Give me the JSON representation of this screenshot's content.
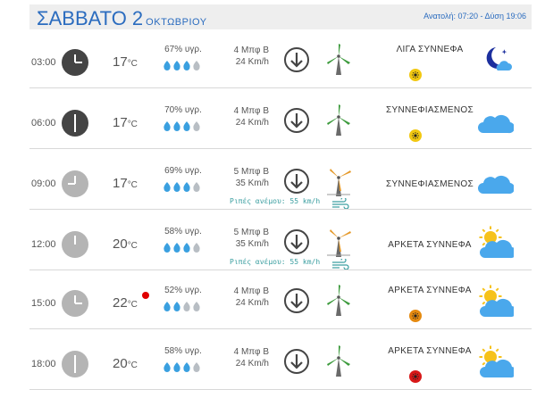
{
  "header": {
    "day": "ΣΑΒΒΑΤΟ 2",
    "month": "ΟΚΤΩΒΡΙΟΥ",
    "sun": "Ανατολή: 07:20 - Δύση 19:06"
  },
  "rows": [
    {
      "time": "03:00",
      "temp": "17",
      "unit": "°C",
      "humidity": "67% υγρ.",
      "drops_filled": 3,
      "wind_bf": "4 Μπφ Β",
      "wind_kmh": "24 Km/h",
      "gust": "",
      "mill": "green",
      "description": "ΛΙΓΑ ΣΥΝΝΕΦΑ",
      "uv_color": "#f2c811",
      "weather_icon": "moon-cloud-icon",
      "clock": "dark"
    },
    {
      "time": "06:00",
      "temp": "17",
      "unit": "°C",
      "humidity": "70% υγρ.",
      "drops_filled": 3,
      "wind_bf": "4 Μπφ Β",
      "wind_kmh": "24 Km/h",
      "gust": "",
      "mill": "green",
      "description": "ΣΥΝΝΕΦΙΑΣΜΕΝΟΣ",
      "uv_color": "#f2c811",
      "weather_icon": "cloud-icon",
      "clock": "dark"
    },
    {
      "time": "09:00",
      "temp": "17",
      "unit": "°C",
      "humidity": "69% υγρ.",
      "drops_filled": 3,
      "wind_bf": "5 Μπφ Β",
      "wind_kmh": "35 Km/h",
      "gust": "Ριπές ανέμου: 55 km/h",
      "mill": "orange",
      "description": "ΣΥΝΝΕΦΙΑΣΜΕΝΟΣ",
      "uv_color": "",
      "weather_icon": "cloud-icon",
      "clock": "light"
    },
    {
      "time": "12:00",
      "temp": "20",
      "unit": "°C",
      "humidity": "58% υγρ.",
      "drops_filled": 3,
      "wind_bf": "5 Μπφ Β",
      "wind_kmh": "35 Km/h",
      "gust": "Ριπές ανέμου: 55 km/h",
      "mill": "orange",
      "description": "ΑΡΚΕΤΑ ΣΥΝΝΕΦΑ",
      "uv_color": "",
      "weather_icon": "sun-cloud-icon",
      "clock": "light"
    },
    {
      "time": "15:00",
      "temp": "22",
      "unit": "°C",
      "humidity": "52% υγρ.",
      "drops_filled": 2,
      "wind_bf": "4 Μπφ Β",
      "wind_kmh": "24 Km/h",
      "gust": "",
      "mill": "green",
      "description": "ΑΡΚΕΤΑ ΣΥΝΝΕΦΑ",
      "uv_color": "#e58a10",
      "weather_icon": "sun-cloud-icon",
      "clock": "light",
      "alert": true
    },
    {
      "time": "18:00",
      "temp": "20",
      "unit": "°C",
      "humidity": "58% υγρ.",
      "drops_filled": 3,
      "wind_bf": "4 Μπφ Β",
      "wind_kmh": "24 Km/h",
      "gust": "",
      "mill": "green",
      "description": "ΑΡΚΕΤΑ ΣΥΝΝΕΦΑ",
      "uv_color": "#d81818",
      "weather_icon": "sun-cloud-icon",
      "clock": "light"
    }
  ],
  "colors": {
    "accent": "#2b6cbf",
    "cloud": "#4aa8ec",
    "moon": "#1c2f9e",
    "sun": "#f6c21a",
    "drop": "#3aa0e0",
    "drop_empty": "#b8bec4",
    "mill_green": "#3c9a3c",
    "mill_orange": "#e59a2a",
    "gust": "#3a9ea0",
    "alert": "#e00000"
  }
}
